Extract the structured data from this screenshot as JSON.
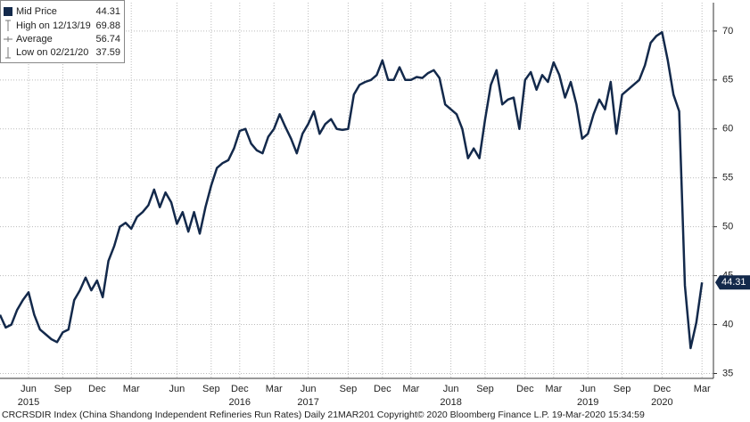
{
  "chart_data": {
    "type": "line",
    "series": [
      {
        "name": "Mid Price",
        "color": "#13294b",
        "values": [
          41,
          39.7,
          40,
          41.5,
          42.5,
          43.3,
          41,
          39.5,
          39,
          38.5,
          38.2,
          39.2,
          39.5,
          42.5,
          43.5,
          44.8,
          43.5,
          44.5,
          42.8,
          46.5,
          48,
          50,
          50.4,
          49.8,
          51,
          51.5,
          52.2,
          53.8,
          52,
          53.5,
          52.5,
          50.3,
          51.5,
          49.5,
          51.5,
          49.3,
          52,
          54.2,
          56,
          56.5,
          56.8,
          58,
          59.8,
          60,
          58.5,
          57.8,
          57.5,
          59.2,
          60,
          61.5,
          60.2,
          59,
          57.5,
          59.5,
          60.5,
          61.8,
          59.5,
          60.5,
          61,
          60,
          59.9,
          60,
          63.5,
          64.5,
          64.8,
          65,
          65.5,
          67,
          65,
          65,
          66.3,
          65,
          65,
          65.3,
          65.2,
          65.7,
          66,
          65.2,
          62.5,
          62,
          61.5,
          60,
          57,
          58,
          57,
          61,
          64.5,
          66,
          62.5,
          63,
          63.2,
          60,
          65,
          65.8,
          64,
          65.5,
          64.8,
          66.8,
          65.5,
          63.2,
          64.8,
          62.5,
          59,
          59.5,
          61.5,
          63,
          62,
          64.8,
          59.5,
          63.5,
          64,
          64.5,
          65,
          66.5,
          68.8,
          69.5,
          69.88,
          67,
          63.5,
          61.8,
          44,
          37.59,
          40.2,
          44.31,
          null
        ]
      }
    ],
    "categories": [
      null,
      null,
      null,
      null,
      null,
      "Jun",
      null,
      null,
      null,
      null,
      null,
      "Sep",
      null,
      null,
      null,
      null,
      null,
      "Dec",
      null,
      null,
      null,
      null,
      null,
      "Mar",
      null,
      null,
      null,
      null,
      null,
      null,
      null,
      "Jun",
      null,
      null,
      null,
      null,
      null,
      "Sep",
      null,
      null,
      null,
      null,
      "Dec",
      null,
      null,
      null,
      null,
      null,
      "Mar",
      null,
      null,
      null,
      null,
      null,
      "Jun",
      null,
      null,
      null,
      null,
      null,
      null,
      "Sep",
      null,
      null,
      null,
      null,
      null,
      "Dec",
      null,
      null,
      null,
      null,
      "Mar",
      null,
      null,
      null,
      null,
      null,
      null,
      "Jun",
      null,
      null,
      null,
      null,
      null,
      "Sep",
      null,
      null,
      null,
      null,
      null,
      null,
      "Dec",
      null,
      null,
      null,
      null,
      "Mar",
      null,
      null,
      null,
      null,
      null,
      "Jun",
      null,
      null,
      null,
      null,
      null,
      "Sep",
      null,
      null,
      null,
      null,
      null,
      null,
      "Dec",
      null,
      null,
      null,
      null,
      null,
      null,
      "Mar",
      null
    ],
    "year_labels": [
      null,
      null,
      null,
      null,
      null,
      "2015",
      null,
      null,
      null,
      null,
      null,
      null,
      null,
      null,
      null,
      null,
      null,
      null,
      null,
      null,
      null,
      null,
      null,
      null,
      null,
      null,
      null,
      null,
      null,
      null,
      null,
      null,
      null,
      null,
      null,
      null,
      null,
      null,
      null,
      null,
      null,
      null,
      "2016",
      null,
      null,
      null,
      null,
      null,
      null,
      null,
      null,
      null,
      null,
      null,
      "2017",
      null,
      null,
      null,
      null,
      null,
      null,
      null,
      null,
      null,
      null,
      null,
      null,
      null,
      null,
      null,
      null,
      null,
      null,
      null,
      null,
      null,
      null,
      null,
      null,
      "2018",
      null,
      null,
      null,
      null,
      null,
      null,
      null,
      null,
      null,
      null,
      null,
      null,
      null,
      null,
      null,
      null,
      null,
      null,
      null,
      null,
      null,
      null,
      null,
      "2019",
      null,
      null,
      null,
      null,
      null,
      null,
      null,
      null,
      null,
      null,
      null,
      null,
      "2020",
      null,
      null,
      null,
      null,
      null,
      null,
      null,
      null
    ],
    "ylim": [
      34.5,
      72.9
    ],
    "yticks": [
      35,
      40,
      45,
      50,
      55,
      60,
      65,
      70
    ],
    "grid": true,
    "legend_stats": [
      {
        "label": "High on 12/13/19",
        "value": 69.88
      },
      {
        "label": "Average",
        "value": 56.74
      },
      {
        "label": "Low on 02/21/20",
        "value": 37.59
      }
    ],
    "footer": "CRCRSDIR Index (China Shandong Independent Refineries Run Rates)  Daily 21MAR201 Copyright© 2020 Bloomberg Finance L.P. 19-Mar-2020 15:34:59"
  }
}
